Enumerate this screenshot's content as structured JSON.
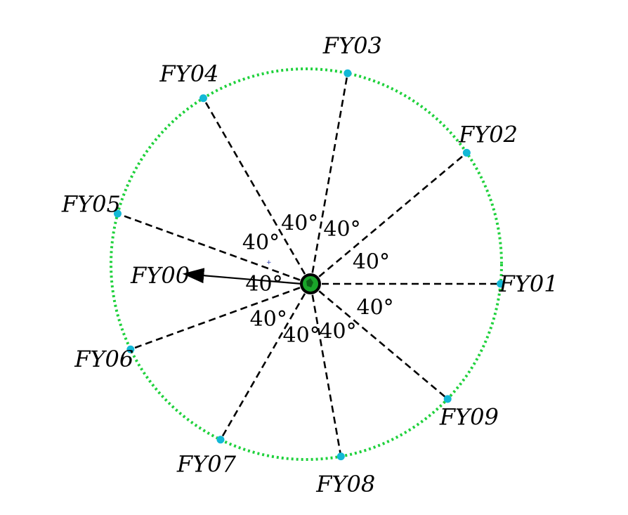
{
  "diagram": {
    "center_label": "FY00",
    "colors": {
      "ring": "#1fd13c",
      "node": "#12b8d6",
      "spoke": "#000000",
      "hub": "#1aa52a"
    },
    "nodes": [
      {
        "label": "FY01",
        "angle_deg": 0
      },
      {
        "label": "FY02",
        "angle_deg": 40
      },
      {
        "label": "FY03",
        "angle_deg": 80
      },
      {
        "label": "FY04",
        "angle_deg": 120
      },
      {
        "label": "FY05",
        "angle_deg": 160
      },
      {
        "label": "FY06",
        "angle_deg": 200
      },
      {
        "label": "FY07",
        "angle_deg": 240
      },
      {
        "label": "FY08",
        "angle_deg": 280
      },
      {
        "label": "FY09",
        "angle_deg": 320
      }
    ],
    "angle_labels": [
      "40°",
      "40°",
      "40°",
      "40°",
      "40°",
      "40°",
      "40°",
      "40°",
      "40°"
    ]
  }
}
